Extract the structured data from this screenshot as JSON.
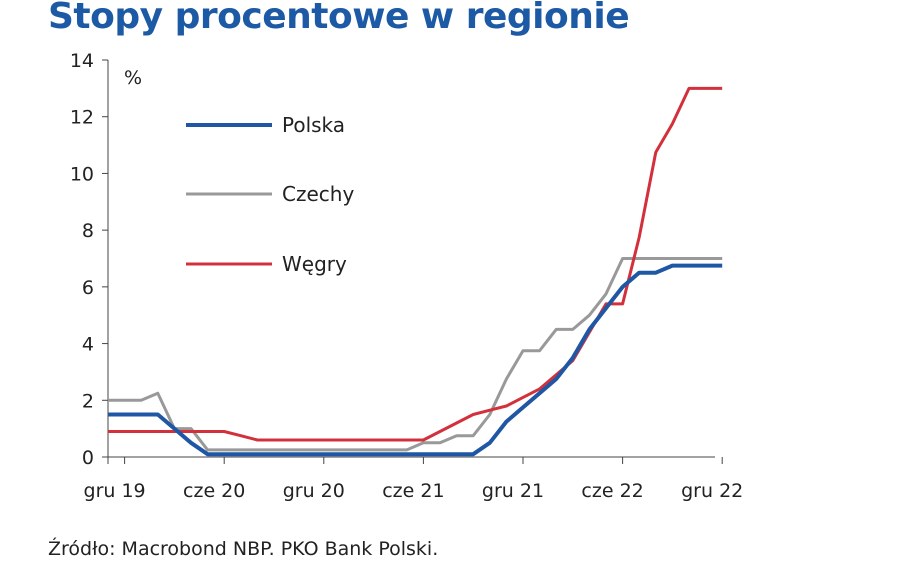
{
  "title": "Stopy procentowe w regionie",
  "source": "Źródło: Macrobond NBP. PKO Bank Polski.",
  "chart_data": {
    "type": "line",
    "unit": "%",
    "x_ticks": [
      "gru 19",
      "cze 20",
      "gru 20",
      "cze 21",
      "gru 21",
      "cze 22",
      "gru 22"
    ],
    "x": [
      "2019-11",
      "2019-12",
      "2020-01",
      "2020-02",
      "2020-03",
      "2020-04",
      "2020-05",
      "2020-06",
      "2020-07",
      "2020-08",
      "2020-09",
      "2020-10",
      "2020-11",
      "2020-12",
      "2021-01",
      "2021-02",
      "2021-03",
      "2021-04",
      "2021-05",
      "2021-06",
      "2021-07",
      "2021-08",
      "2021-09",
      "2021-10",
      "2021-11",
      "2021-12",
      "2022-01",
      "2022-02",
      "2022-03",
      "2022-04",
      "2022-05",
      "2022-06",
      "2022-07",
      "2022-08",
      "2022-09",
      "2022-10",
      "2022-11",
      "2022-12"
    ],
    "ylim": [
      0,
      14
    ],
    "y_ticks": [
      0,
      2,
      4,
      6,
      8,
      10,
      12,
      14
    ],
    "legend_position": "top-left",
    "series": [
      {
        "name": "Polska",
        "color": "#1f57a4",
        "values": [
          1.5,
          1.5,
          1.5,
          1.5,
          1.0,
          0.5,
          0.1,
          0.1,
          0.1,
          0.1,
          0.1,
          0.1,
          0.1,
          0.1,
          0.1,
          0.1,
          0.1,
          0.1,
          0.1,
          0.1,
          0.1,
          0.1,
          0.1,
          0.5,
          1.25,
          1.75,
          2.25,
          2.75,
          3.5,
          4.5,
          5.25,
          6.0,
          6.5,
          6.5,
          6.75,
          6.75,
          6.75,
          6.75
        ]
      },
      {
        "name": "Czechy",
        "color": "#999999",
        "values": [
          2.0,
          2.0,
          2.0,
          2.25,
          1.0,
          1.0,
          0.25,
          0.25,
          0.25,
          0.25,
          0.25,
          0.25,
          0.25,
          0.25,
          0.25,
          0.25,
          0.25,
          0.25,
          0.25,
          0.5,
          0.5,
          0.75,
          0.75,
          1.5,
          2.75,
          3.75,
          3.75,
          4.5,
          4.5,
          5.0,
          5.75,
          7.0,
          7.0,
          7.0,
          7.0,
          7.0,
          7.0,
          7.0
        ]
      },
      {
        "name": "Węgry",
        "color": "#d2313c",
        "values": [
          0.9,
          0.9,
          0.9,
          0.9,
          0.9,
          0.9,
          0.9,
          0.9,
          0.75,
          0.6,
          0.6,
          0.6,
          0.6,
          0.6,
          0.6,
          0.6,
          0.6,
          0.6,
          0.6,
          0.6,
          0.9,
          1.2,
          1.5,
          1.65,
          1.8,
          2.1,
          2.4,
          2.9,
          3.4,
          4.4,
          5.4,
          5.4,
          7.75,
          10.75,
          11.75,
          13.0,
          13.0,
          13.0
        ]
      }
    ]
  }
}
